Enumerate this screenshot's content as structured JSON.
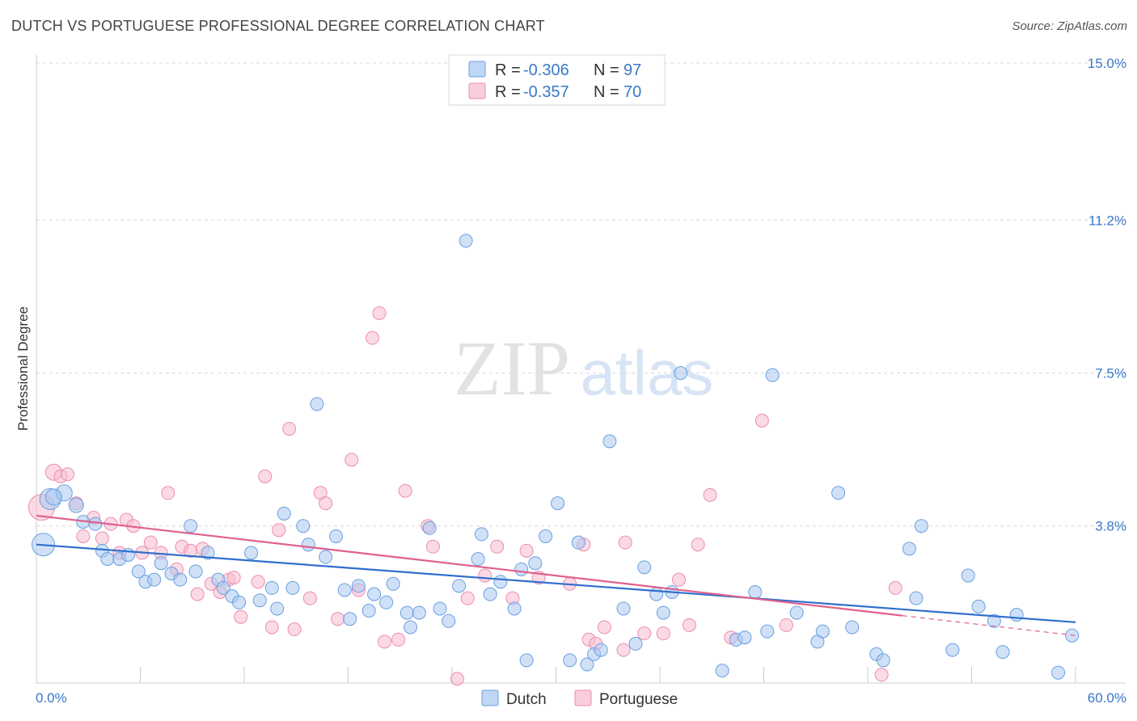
{
  "title": "DUTCH VS PORTUGUESE PROFESSIONAL DEGREE CORRELATION CHART",
  "source": "Source: ZipAtlas.com",
  "watermark": {
    "zip": "ZIP",
    "atlas": "atlas"
  },
  "colors": {
    "dutch_fill": "#a9c8f0",
    "dutch_stroke": "#6a9fe0",
    "dutch_line": "#2f6fce",
    "portuguese_fill": "#f7bcd0",
    "portuguese_stroke": "#ec8cae",
    "portuguese_line": "#e0608e",
    "grid": "#d8d8d8",
    "axis_label": "#3a78c9"
  },
  "legend": {
    "rows": [
      {
        "r_label": "R = ",
        "r_value": "-0.306",
        "n_label": "N = ",
        "n_value": "97"
      },
      {
        "r_label": "R = ",
        "r_value": "-0.357",
        "n_label": "N = ",
        "n_value": "70"
      }
    ]
  },
  "bottom_legend": [
    "Dutch",
    "Portuguese"
  ],
  "chart_data": {
    "type": "scatter",
    "xlabel": "",
    "ylabel": "Professional Degree",
    "xlim": [
      0,
      60
    ],
    "ylim": [
      0,
      15
    ],
    "x_tick_labels": [
      "0.0%",
      "60.0%"
    ],
    "y_ticks": [
      3.8,
      7.5,
      11.2,
      15.0
    ],
    "y_tick_labels": [
      "3.8%",
      "7.5%",
      "11.2%",
      "15.0%"
    ],
    "grid": "horizontal dashed",
    "legend_position": "top-center",
    "series": [
      {
        "name": "Dutch",
        "r": -0.306,
        "n": 97,
        "trend": {
          "x": [
            0,
            60
          ],
          "y": [
            3.35,
            1.47
          ]
        },
        "points": [
          [
            0.4,
            3.35,
            14
          ],
          [
            0.8,
            4.45,
            13
          ],
          [
            1.6,
            4.6,
            10
          ],
          [
            2.3,
            4.3,
            9
          ],
          [
            2.7,
            3.9,
            8
          ],
          [
            3.4,
            3.85,
            8
          ],
          [
            3.8,
            3.2,
            8
          ],
          [
            4.1,
            3.0,
            8
          ],
          [
            4.8,
            3.0,
            8
          ],
          [
            5.3,
            3.1,
            8
          ],
          [
            5.9,
            2.7,
            8
          ],
          [
            6.3,
            2.45,
            8
          ],
          [
            6.8,
            2.5,
            8
          ],
          [
            7.2,
            2.9,
            8
          ],
          [
            7.8,
            2.65,
            8
          ],
          [
            8.3,
            2.5,
            8
          ],
          [
            8.9,
            3.8,
            8
          ],
          [
            9.2,
            2.7,
            8
          ],
          [
            9.9,
            3.15,
            8
          ],
          [
            10.5,
            2.5,
            8
          ],
          [
            10.8,
            2.3,
            8
          ],
          [
            11.3,
            2.1,
            8
          ],
          [
            11.7,
            1.95,
            8
          ],
          [
            12.4,
            3.15,
            8
          ],
          [
            12.9,
            2.0,
            8
          ],
          [
            13.6,
            2.3,
            8
          ],
          [
            13.9,
            1.8,
            8
          ],
          [
            14.3,
            4.1,
            8
          ],
          [
            14.8,
            2.3,
            8
          ],
          [
            15.4,
            3.8,
            8
          ],
          [
            15.7,
            3.35,
            8
          ],
          [
            16.2,
            6.75,
            8
          ],
          [
            16.7,
            3.05,
            8
          ],
          [
            17.3,
            3.55,
            8
          ],
          [
            17.8,
            2.25,
            8
          ],
          [
            18.1,
            1.55,
            8
          ],
          [
            18.6,
            2.35,
            8
          ],
          [
            19.2,
            1.75,
            8
          ],
          [
            19.5,
            2.15,
            8
          ],
          [
            20.2,
            1.95,
            8
          ],
          [
            20.6,
            2.4,
            8
          ],
          [
            21.4,
            1.7,
            8
          ],
          [
            21.6,
            1.35,
            8
          ],
          [
            22.1,
            1.7,
            8
          ],
          [
            22.7,
            3.75,
            8
          ],
          [
            23.3,
            1.8,
            8
          ],
          [
            23.8,
            1.5,
            8
          ],
          [
            24.4,
            2.35,
            8
          ],
          [
            24.8,
            10.7,
            8
          ],
          [
            25.5,
            3.0,
            8
          ],
          [
            25.7,
            3.6,
            8
          ],
          [
            26.2,
            2.15,
            8
          ],
          [
            26.8,
            2.45,
            8
          ],
          [
            27.6,
            1.8,
            8
          ],
          [
            28.0,
            2.75,
            8
          ],
          [
            28.3,
            0.55,
            8
          ],
          [
            28.8,
            2.9,
            8
          ],
          [
            29.4,
            3.55,
            8
          ],
          [
            30.1,
            4.35,
            8
          ],
          [
            30.8,
            0.55,
            8
          ],
          [
            31.3,
            3.4,
            8
          ],
          [
            31.8,
            0.45,
            8
          ],
          [
            32.2,
            0.7,
            8
          ],
          [
            32.6,
            0.8,
            8
          ],
          [
            33.1,
            5.85,
            8
          ],
          [
            33.9,
            1.8,
            8
          ],
          [
            34.6,
            0.95,
            8
          ],
          [
            35.1,
            2.8,
            8
          ],
          [
            35.8,
            2.15,
            8
          ],
          [
            36.2,
            1.7,
            8
          ],
          [
            36.7,
            2.2,
            8
          ],
          [
            37.2,
            7.5,
            8
          ],
          [
            39.6,
            0.3,
            8
          ],
          [
            40.4,
            1.05,
            8
          ],
          [
            40.9,
            1.1,
            8
          ],
          [
            41.5,
            2.2,
            8
          ],
          [
            42.2,
            1.25,
            8
          ],
          [
            42.5,
            7.45,
            8
          ],
          [
            43.9,
            1.7,
            8
          ],
          [
            45.1,
            1.0,
            8
          ],
          [
            45.4,
            1.25,
            8
          ],
          [
            46.3,
            4.6,
            8
          ],
          [
            47.1,
            1.35,
            8
          ],
          [
            48.5,
            0.7,
            8
          ],
          [
            48.9,
            0.55,
            8
          ],
          [
            50.4,
            3.25,
            8
          ],
          [
            50.8,
            2.05,
            8
          ],
          [
            51.1,
            3.8,
            8
          ],
          [
            52.9,
            0.8,
            8
          ],
          [
            53.8,
            2.6,
            8
          ],
          [
            54.4,
            1.85,
            8
          ],
          [
            55.3,
            1.5,
            8
          ],
          [
            55.8,
            0.75,
            8
          ],
          [
            56.6,
            1.65,
            8
          ],
          [
            59.0,
            0.25,
            8
          ],
          [
            59.8,
            1.15,
            8
          ],
          [
            1.0,
            4.5,
            10
          ]
        ]
      },
      {
        "name": "Portuguese",
        "r": -0.357,
        "n": 70,
        "trend": {
          "x": [
            0,
            50.0
          ],
          "y": [
            4.05,
            1.63
          ]
        },
        "dashed_extension": {
          "x": [
            50.0,
            60
          ],
          "y": [
            1.63,
            1.15
          ]
        },
        "points": [
          [
            0.3,
            4.25,
            16
          ],
          [
            1.0,
            5.1,
            10
          ],
          [
            1.4,
            5.0,
            8
          ],
          [
            1.8,
            5.05,
            8
          ],
          [
            2.3,
            4.35,
            8
          ],
          [
            2.7,
            3.55,
            8
          ],
          [
            3.3,
            4.0,
            8
          ],
          [
            3.8,
            3.5,
            8
          ],
          [
            4.3,
            3.85,
            8
          ],
          [
            4.8,
            3.15,
            8
          ],
          [
            5.2,
            3.95,
            8
          ],
          [
            5.6,
            3.8,
            8
          ],
          [
            6.1,
            3.15,
            8
          ],
          [
            6.6,
            3.4,
            8
          ],
          [
            7.2,
            3.15,
            8
          ],
          [
            7.6,
            4.6,
            8
          ],
          [
            8.1,
            2.75,
            8
          ],
          [
            8.4,
            3.3,
            8
          ],
          [
            8.9,
            3.2,
            8
          ],
          [
            9.3,
            2.15,
            8
          ],
          [
            9.6,
            3.25,
            8
          ],
          [
            10.1,
            2.4,
            8
          ],
          [
            10.6,
            2.2,
            8
          ],
          [
            11.1,
            2.5,
            8
          ],
          [
            11.4,
            2.55,
            8
          ],
          [
            11.8,
            1.6,
            8
          ],
          [
            12.8,
            2.45,
            8
          ],
          [
            13.2,
            5.0,
            8
          ],
          [
            13.6,
            1.35,
            8
          ],
          [
            14.0,
            3.7,
            8
          ],
          [
            14.6,
            6.15,
            8
          ],
          [
            14.9,
            1.3,
            8
          ],
          [
            15.8,
            2.05,
            8
          ],
          [
            16.4,
            4.6,
            8
          ],
          [
            16.7,
            4.35,
            8
          ],
          [
            17.4,
            1.55,
            8
          ],
          [
            18.2,
            5.4,
            8
          ],
          [
            18.6,
            2.25,
            8
          ],
          [
            19.4,
            8.35,
            8
          ],
          [
            19.8,
            8.95,
            8
          ],
          [
            20.1,
            1.0,
            8
          ],
          [
            20.9,
            1.05,
            8
          ],
          [
            21.3,
            4.65,
            8
          ],
          [
            22.6,
            3.8,
            8
          ],
          [
            22.9,
            3.3,
            8
          ],
          [
            24.3,
            0.1,
            8
          ],
          [
            24.9,
            2.05,
            8
          ],
          [
            25.9,
            2.6,
            8
          ],
          [
            26.6,
            3.3,
            8
          ],
          [
            27.5,
            2.05,
            8
          ],
          [
            28.3,
            3.2,
            8
          ],
          [
            29.0,
            2.55,
            8
          ],
          [
            30.8,
            2.4,
            8
          ],
          [
            31.6,
            3.35,
            8
          ],
          [
            31.9,
            1.05,
            8
          ],
          [
            32.3,
            0.95,
            8
          ],
          [
            32.8,
            1.35,
            8
          ],
          [
            33.9,
            0.8,
            8
          ],
          [
            35.1,
            1.2,
            8
          ],
          [
            36.2,
            1.2,
            8
          ],
          [
            37.1,
            2.5,
            8
          ],
          [
            37.7,
            1.4,
            8
          ],
          [
            38.2,
            3.35,
            8
          ],
          [
            38.9,
            4.55,
            8
          ],
          [
            40.1,
            1.1,
            8
          ],
          [
            41.9,
            6.35,
            8
          ],
          [
            43.3,
            1.4,
            8
          ],
          [
            48.8,
            0.2,
            8
          ],
          [
            49.6,
            2.3,
            8
          ],
          [
            34.0,
            3.4,
            8
          ]
        ]
      }
    ]
  }
}
